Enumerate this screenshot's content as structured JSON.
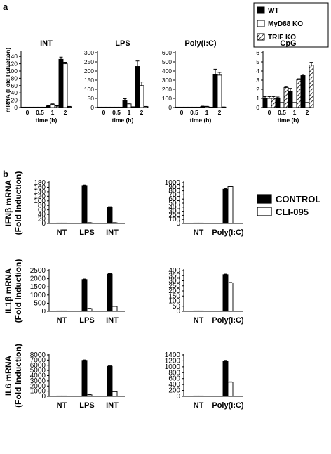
{
  "figure": {
    "panel_a_label": "a",
    "panel_b_label": "b",
    "legend_a": [
      {
        "name": "WT",
        "pattern": "solid"
      },
      {
        "name": "MyD88 KO",
        "pattern": "open"
      },
      {
        "name": "TRIF KO",
        "pattern": "hatched"
      }
    ],
    "legend_b": [
      {
        "name": "CONTROL",
        "pattern": "solid"
      },
      {
        "name": "CLI-095",
        "pattern": "open"
      }
    ],
    "colors": {
      "ink": "#000000",
      "open": "#ffffff"
    }
  },
  "chart_data": [
    {
      "type": "bar",
      "title": "INT",
      "panel": "a",
      "xlabel": "time (h)",
      "ylabel": "mRNA (Fold Induction)",
      "categories": [
        "0",
        "0.5",
        "1",
        "2"
      ],
      "ylim": [
        0,
        150
      ],
      "yticks": [
        0,
        20,
        40,
        60,
        80,
        100,
        120,
        140
      ],
      "series": [
        {
          "name": "WT",
          "values": [
            1,
            1,
            4,
            132
          ],
          "errors": [
            0,
            0,
            1,
            6
          ]
        },
        {
          "name": "MyD88 KO",
          "values": [
            1,
            1,
            8,
            120
          ],
          "errors": [
            0,
            0,
            2,
            4
          ]
        },
        {
          "name": "TRIF KO",
          "values": [
            1,
            1,
            4,
            2
          ],
          "errors": [
            0,
            0,
            1,
            1
          ]
        }
      ]
    },
    {
      "type": "bar",
      "title": "LPS",
      "panel": "a",
      "xlabel": "time (h)",
      "ylabel": "",
      "categories": [
        "0",
        "0.5",
        "1",
        "2"
      ],
      "ylim": [
        0,
        300
      ],
      "yticks": [
        0,
        50,
        100,
        150,
        200,
        250,
        300
      ],
      "series": [
        {
          "name": "WT",
          "values": [
            1,
            2,
            40,
            225
          ],
          "errors": [
            0,
            0,
            8,
            30
          ]
        },
        {
          "name": "MyD88 KO",
          "values": [
            1,
            1,
            20,
            120
          ],
          "errors": [
            0,
            0,
            5,
            20
          ]
        },
        {
          "name": "TRIF KO",
          "values": [
            1,
            1,
            3,
            5
          ],
          "errors": [
            0,
            0,
            1,
            1
          ]
        }
      ]
    },
    {
      "type": "bar",
      "title": "Poly(I:C)",
      "panel": "a",
      "xlabel": "time (h)",
      "ylabel": "",
      "categories": [
        "0",
        "0.5",
        "1",
        "2"
      ],
      "ylim": [
        0,
        600
      ],
      "yticks": [
        0,
        100,
        200,
        300,
        400,
        500,
        600
      ],
      "series": [
        {
          "name": "WT",
          "values": [
            1,
            2,
            12,
            365
          ],
          "errors": [
            0,
            0,
            3,
            55
          ]
        },
        {
          "name": "MyD88 KO",
          "values": [
            1,
            2,
            10,
            355
          ],
          "errors": [
            0,
            0,
            3,
            30
          ]
        },
        {
          "name": "TRIF KO",
          "values": [
            1,
            1,
            2,
            5
          ],
          "errors": [
            0,
            0,
            1,
            1
          ]
        }
      ]
    },
    {
      "type": "bar",
      "title": "CpG",
      "panel": "a",
      "xlabel": "time (h)",
      "ylabel": "",
      "categories": [
        "0",
        "0.5",
        "1",
        "2"
      ],
      "ylim": [
        0,
        6
      ],
      "yticks": [
        0,
        1,
        2,
        3,
        4,
        5,
        6
      ],
      "series": [
        {
          "name": "WT",
          "values": [
            1,
            1.05,
            1.8,
            3.5
          ],
          "errors": [
            0.2,
            0.1,
            0.3,
            0.15
          ]
        },
        {
          "name": "MyD88 KO",
          "values": [
            1,
            0.5,
            0.5,
            0.5
          ],
          "errors": [
            0.2,
            0.05,
            0.05,
            0.05
          ]
        },
        {
          "name": "TRIF KO",
          "values": [
            1,
            2.2,
            3.05,
            4.65
          ],
          "errors": [
            0.2,
            0.1,
            0.1,
            0.3
          ]
        }
      ]
    },
    {
      "type": "bar",
      "title": "",
      "panel": "b",
      "ylabel": "IFNβ mRNA (Fold Induction)",
      "categories": [
        "NT",
        "LPS",
        "INT"
      ],
      "ylim": [
        0,
        180
      ],
      "yticks": [
        0,
        20,
        40,
        60,
        80,
        100,
        120,
        140,
        160,
        180
      ],
      "series": [
        {
          "name": "CONTROL",
          "values": [
            1,
            168,
            72
          ],
          "errors": [
            0,
            2,
            2
          ]
        },
        {
          "name": "CLI-095",
          "values": [
            1,
            3,
            3
          ],
          "errors": [
            0,
            0.5,
            0.5
          ]
        }
      ]
    },
    {
      "type": "bar",
      "title": "",
      "panel": "b",
      "ylabel": "",
      "categories": [
        "NT",
        "Poly(I:C)"
      ],
      "ylim": [
        0,
        1000
      ],
      "yticks": [
        0,
        100,
        200,
        300,
        400,
        500,
        600,
        700,
        800,
        900,
        1000
      ],
      "series": [
        {
          "name": "CONTROL",
          "values": [
            5,
            840
          ],
          "errors": [
            0,
            15
          ]
        },
        {
          "name": "CLI-095",
          "values": [
            5,
            905
          ],
          "errors": [
            0,
            10
          ]
        }
      ]
    },
    {
      "type": "bar",
      "title": "",
      "panel": "b",
      "ylabel": "IL1β mRNA (Fold Induction)",
      "categories": [
        "NT",
        "LPS",
        "INT"
      ],
      "ylim": [
        0,
        2500
      ],
      "yticks": [
        0,
        500,
        1000,
        1500,
        2000,
        2500
      ],
      "series": [
        {
          "name": "CONTROL",
          "values": [
            5,
            1950,
            2280
          ],
          "errors": [
            0,
            30,
            30
          ]
        },
        {
          "name": "CLI-095",
          "values": [
            5,
            170,
            300
          ],
          "errors": [
            0,
            15,
            15
          ]
        }
      ]
    },
    {
      "type": "bar",
      "title": "",
      "panel": "b",
      "ylabel": "",
      "categories": [
        "NT",
        "Poly(I:C)"
      ],
      "ylim": [
        0,
        400
      ],
      "yticks": [
        0,
        50,
        100,
        150,
        200,
        250,
        300,
        350,
        400
      ],
      "series": [
        {
          "name": "CONTROL",
          "values": [
            2,
            360
          ],
          "errors": [
            0,
            5
          ]
        },
        {
          "name": "CLI-095",
          "values": [
            2,
            280
          ],
          "errors": [
            0,
            3
          ]
        }
      ]
    },
    {
      "type": "bar",
      "title": "",
      "panel": "b",
      "ylabel": "IL6 mRNA (Fold Induction)",
      "categories": [
        "NT",
        "LPS",
        "INT"
      ],
      "ylim": [
        0,
        8000
      ],
      "yticks": [
        0,
        1000,
        2000,
        3000,
        4000,
        5000,
        6000,
        7000,
        8000
      ],
      "series": [
        {
          "name": "CONTROL",
          "values": [
            10,
            6950,
            5800
          ],
          "errors": [
            0,
            80,
            80
          ]
        },
        {
          "name": "CLI-095",
          "values": [
            10,
            300,
            900
          ],
          "errors": [
            0,
            30,
            50
          ]
        }
      ]
    },
    {
      "type": "bar",
      "title": "",
      "panel": "b",
      "ylabel": "",
      "categories": [
        "NT",
        "Poly(I:C)"
      ],
      "ylim": [
        0,
        1400
      ],
      "yticks": [
        0,
        200,
        400,
        600,
        800,
        1000,
        1200,
        1400
      ],
      "series": [
        {
          "name": "CONTROL",
          "values": [
            5,
            1200
          ],
          "errors": [
            0,
            15
          ]
        },
        {
          "name": "CLI-095",
          "values": [
            5,
            480
          ],
          "errors": [
            0,
            10
          ]
        }
      ]
    }
  ]
}
